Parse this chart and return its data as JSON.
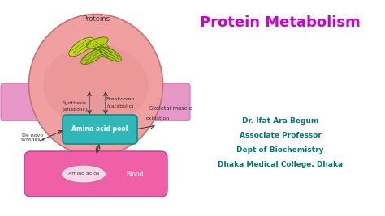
{
  "title": "Protein Metabolism",
  "title_color": "#cc00cc",
  "title_fontsize": 13,
  "bg_color": "#ffffff",
  "info_lines": [
    "Dr. Ifat Ara Begum",
    "Associate Professor",
    "Dept of Biochemistry",
    "Dhaka Medical College, Dhaka"
  ],
  "info_color": "#007878",
  "info_fontsize": 6.5,
  "pool_color": "#30b8b8",
  "pool_label": "Amino acid pool",
  "blood_color": "#f060a8",
  "blood_label": "Amino acids",
  "blood_side_label": "Blood",
  "proteins_label": "Proteins",
  "synthesis_label": "Synthesis",
  "synthesis_sub": "(anabolic)",
  "breakdown_label": "Breakdown",
  "breakdown_sub": "(catabolic)",
  "denovo_label": "De novo\nsynthesis",
  "oxidation_label": "oxidation",
  "skeletal_label": "Skeletal muscle"
}
